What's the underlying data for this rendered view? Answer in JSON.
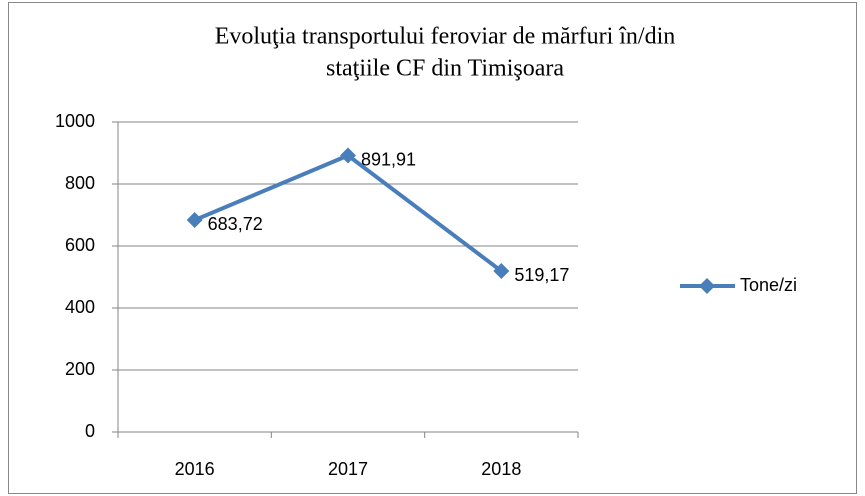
{
  "chart_data": {
    "type": "line",
    "title": [
      "Evoluţia transportului feroviar de mărfuri în/din",
      "staţiile CF din Timişoara"
    ],
    "categories": [
      "2016",
      "2017",
      "2018"
    ],
    "series": [
      {
        "name": "Tone/zi",
        "color": "#4a7ebb",
        "values": [
          683.72,
          891.91,
          519.17
        ],
        "value_labels": [
          "683,72",
          "891,91",
          "519,17"
        ]
      }
    ],
    "ylim": [
      0,
      1000
    ],
    "yticks": [
      0,
      200,
      400,
      600,
      800,
      1000
    ],
    "grid": true,
    "legend": "right"
  }
}
